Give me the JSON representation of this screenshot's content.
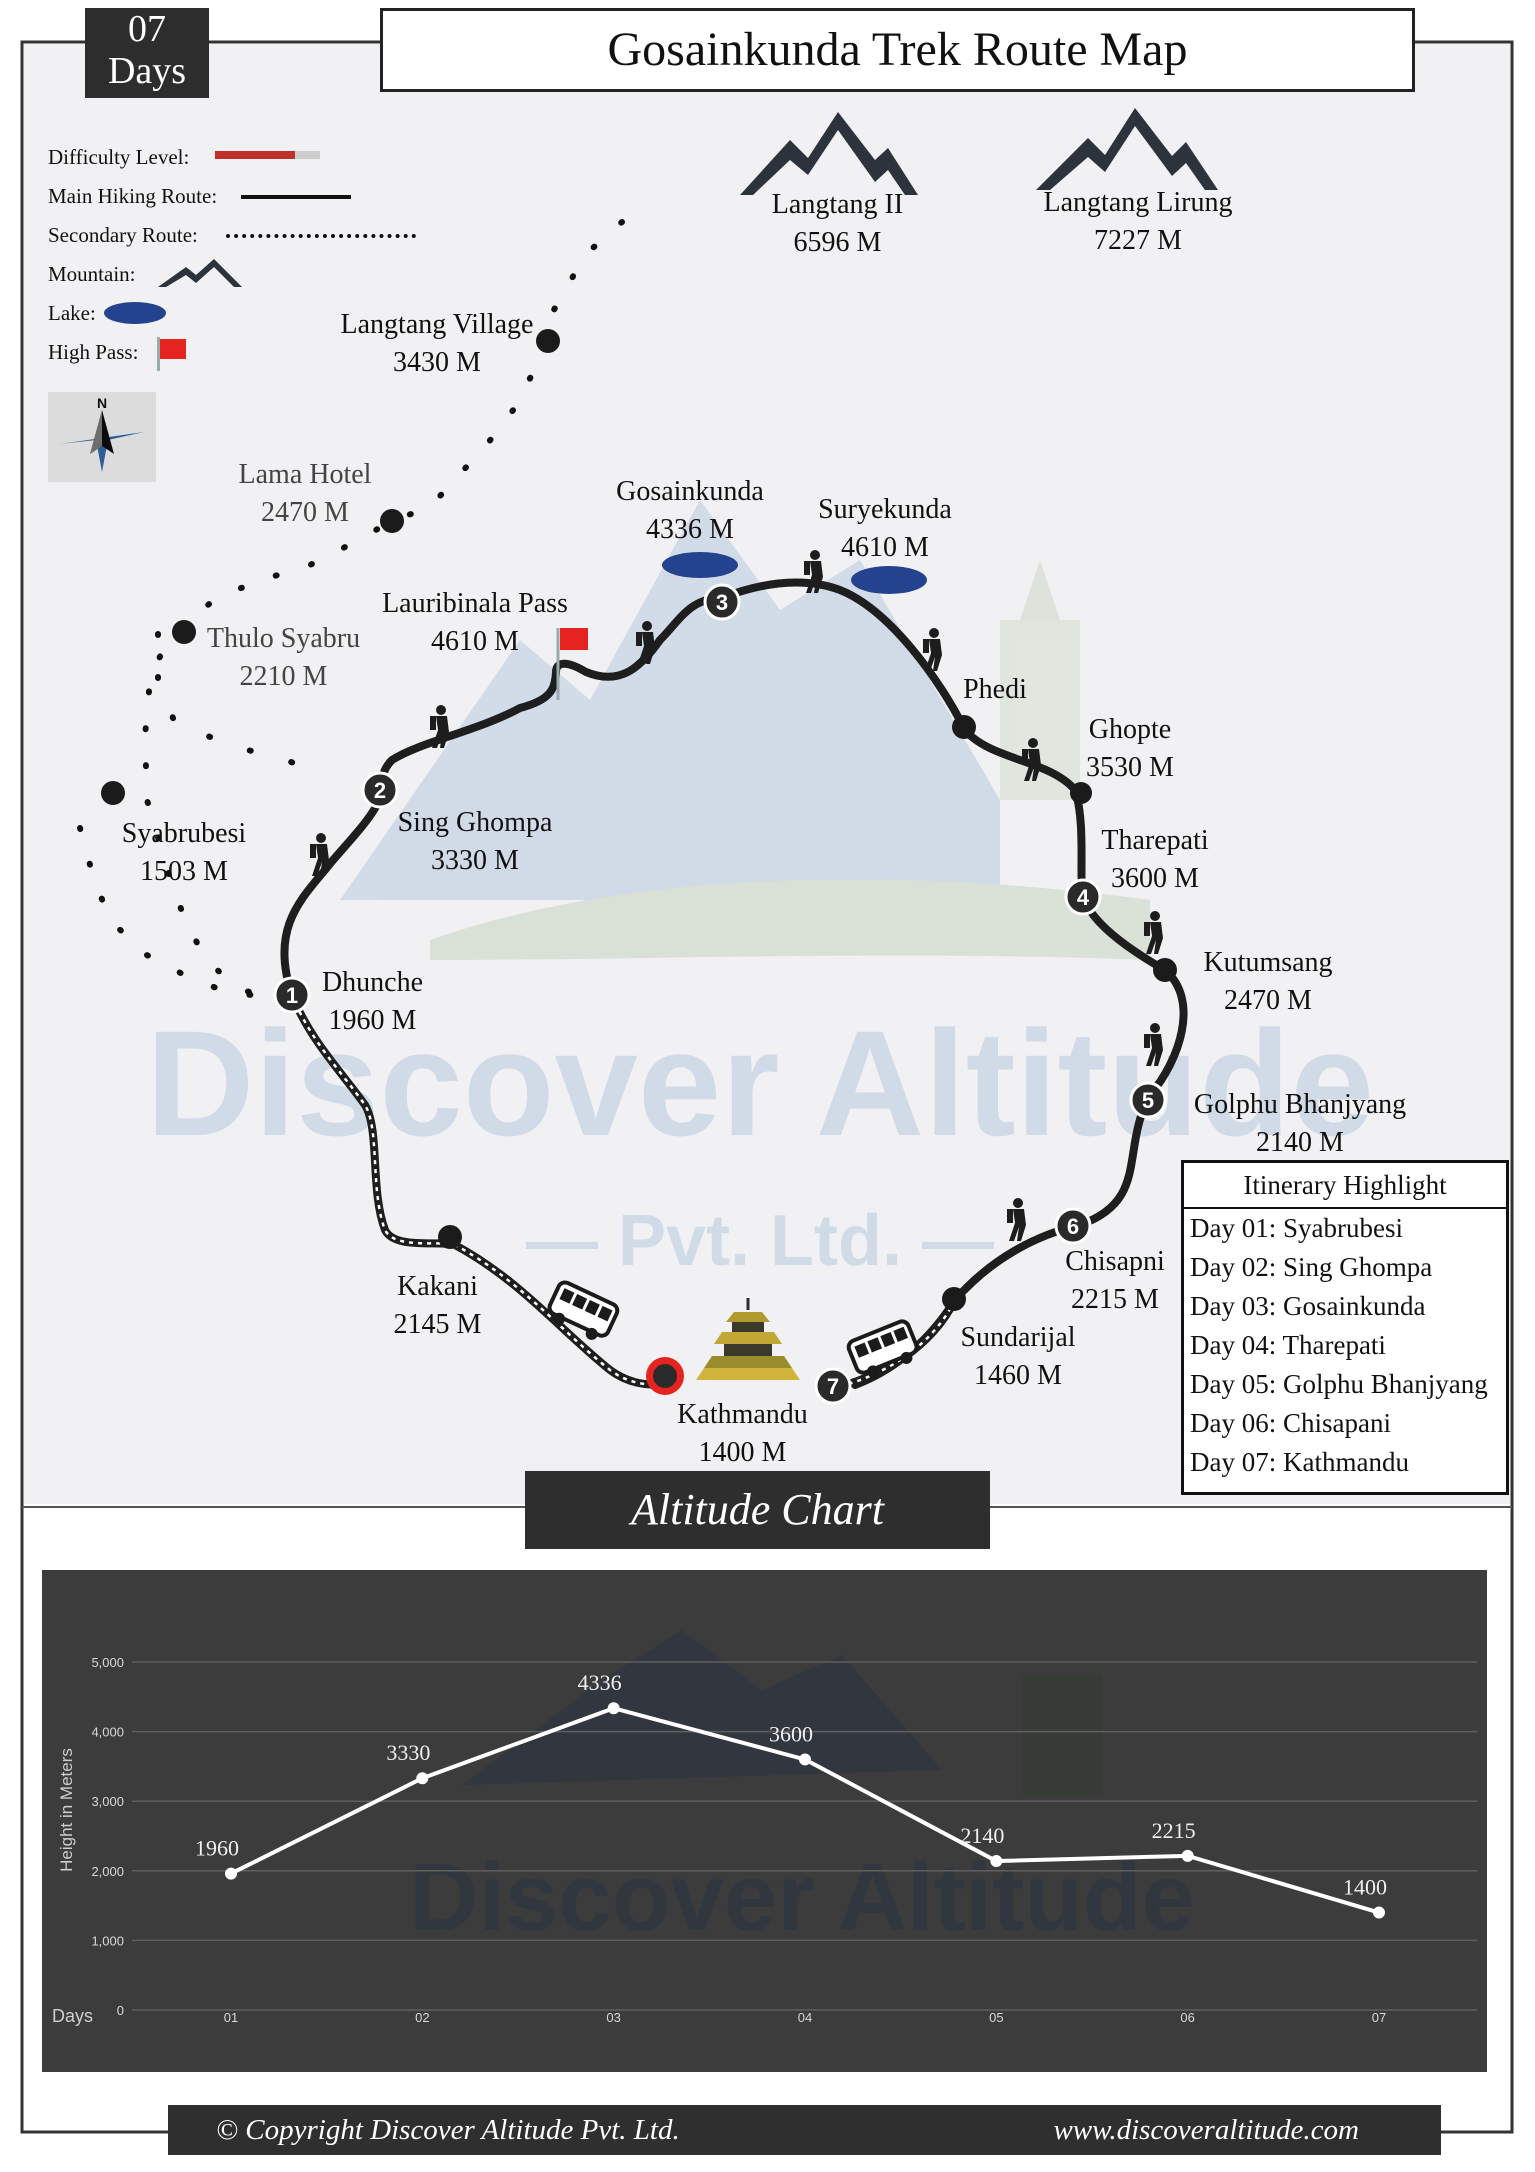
{
  "badge": {
    "days_number": "07",
    "days_label": "Days"
  },
  "title": "Gosainkunda Trek Route Map",
  "legend": {
    "difficulty": "Difficulty Level:",
    "main_route": "Main Hiking Route:",
    "secondary_route": "Secondary Route:",
    "mountain": "Mountain:",
    "lake": "Lake:",
    "high_pass": "High Pass:",
    "compass_letter": "N"
  },
  "peaks": [
    {
      "name": "Langtang II",
      "altitude": "6596 M"
    },
    {
      "name": "Langtang Lirung",
      "altitude": "7227 M"
    }
  ],
  "places": {
    "langtang_village": {
      "name": "Langtang Village",
      "altitude": "3430 M"
    },
    "lama_hotel": {
      "name": "Lama Hotel",
      "altitude": "2470 M"
    },
    "thulo_syabru": {
      "name": "Thulo Syabru",
      "altitude": "2210 M"
    },
    "syabrubesi": {
      "name": "Syabrubesi",
      "altitude": "1503 M"
    },
    "lauribinala": {
      "name": "Lauribinala Pass",
      "altitude": "4610 M"
    },
    "gosainkunda": {
      "name": "Gosainkunda",
      "altitude": "4336 M"
    },
    "suryekunda": {
      "name": "Suryekunda",
      "altitude": "4610 M"
    },
    "phedi": {
      "name": "Phedi"
    },
    "ghopte": {
      "name": "Ghopte",
      "altitude": "3530 M"
    },
    "tharepati": {
      "name": "Tharepati",
      "altitude": "3600 M"
    },
    "kutumsang": {
      "name": "Kutumsang",
      "altitude": "2470 M"
    },
    "golphu": {
      "name": "Golphu Bhanjyang",
      "altitude": "2140 M"
    },
    "chisapni": {
      "name": "Chisapni",
      "altitude": "2215 M"
    },
    "sundarijal": {
      "name": "Sundarijal",
      "altitude": "1460 M"
    },
    "kathmandu": {
      "name": "Kathmandu",
      "altitude": "1400 M"
    },
    "kakani": {
      "name": "Kakani",
      "altitude": "2145 M"
    },
    "dhunche": {
      "name": "Dhunche",
      "altitude": "1960 M"
    },
    "sing_ghompa": {
      "name": "Sing Ghompa",
      "altitude": "3330 M"
    }
  },
  "day_markers": [
    "1",
    "2",
    "3",
    "4",
    "5",
    "6",
    "7"
  ],
  "watermark": {
    "line1": "Discover Altitude",
    "line2": "— Pvt. Ltd. —"
  },
  "itinerary": {
    "heading": "Itinerary Highlight",
    "items": [
      "Day 01: Syabrubesi",
      "Day 02: Sing Ghompa",
      "Day 03: Gosainkunda",
      "Day 04: Tharepati",
      "Day 05: Golphu Bhanjyang",
      "Day 06: Chisapani",
      "Day 07: Kathmandu"
    ]
  },
  "chart_title": "Altitude Chart",
  "chart_data": {
    "type": "line",
    "categories": [
      "01",
      "02",
      "03",
      "04",
      "05",
      "06",
      "07"
    ],
    "series": [
      {
        "values": [
          1960,
          3330,
          4336,
          3600,
          2140,
          2215,
          1400
        ]
      }
    ],
    "data_labels": [
      "1960",
      "3330",
      "4336",
      "3600",
      "2140",
      "2215",
      "1400"
    ],
    "ylabel": "Height in Meters",
    "xlabel": "Days",
    "ylim": [
      0,
      5000
    ],
    "yticks": [
      "0",
      "1,000",
      "2,000",
      "3,000",
      "4,000",
      "5,000"
    ],
    "grid": true,
    "colors": {
      "background": "#3c3c3c",
      "line": "#ffffff",
      "grid": "#5f5f5f"
    }
  },
  "colors": {
    "route": "#1a1a1a",
    "lake": "#24438f",
    "flag": "#e5241f",
    "difficulty": "#c0302b",
    "mountain": "#2d333d"
  },
  "footer": {
    "copyright": "© Copyright  Discover Altitude Pvt. Ltd.",
    "website": "www.discoveraltitude.com"
  }
}
